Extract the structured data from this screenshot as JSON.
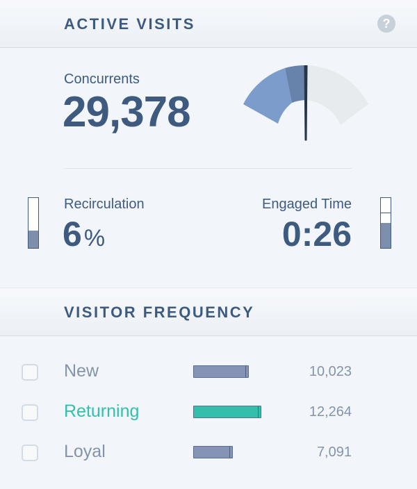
{
  "active_visits": {
    "title": "ACTIVE VISITS",
    "help_icon": "?",
    "concurrents": {
      "label": "Concurrents",
      "value": "29,378"
    },
    "gauge": {
      "level": 0.5,
      "needle_fraction": 0.5
    },
    "recirculation": {
      "label": "Recirculation",
      "value": "6",
      "unit": "%",
      "bar_fill_fraction": 0.35
    },
    "engaged_time": {
      "label": "Engaged Time",
      "value": "0:26",
      "bar_fill_fraction": 0.5,
      "bar_marker_fraction": 0.7
    }
  },
  "visitor_frequency": {
    "title": "VISITOR FREQUENCY",
    "rows": [
      {
        "label": "New",
        "count": "10,023",
        "value": 10023,
        "color": "#8593b6",
        "label_color": "#8593a8"
      },
      {
        "label": "Returning",
        "count": "12,264",
        "value": 12264,
        "color": "#33bfaa",
        "label_color": "#33bfaa"
      },
      {
        "label": "Loyal",
        "count": "7,091",
        "value": 7091,
        "color": "#8593b6",
        "label_color": "#8593a8"
      }
    ]
  },
  "colors": {
    "primary_text": "#3e5a7e",
    "gauge_fill": "#7c9ccb",
    "gauge_dark": "#6883ab",
    "gauge_empty": "#e8ebee",
    "needle": "#26364a",
    "accent_returning": "#33bfaa"
  }
}
